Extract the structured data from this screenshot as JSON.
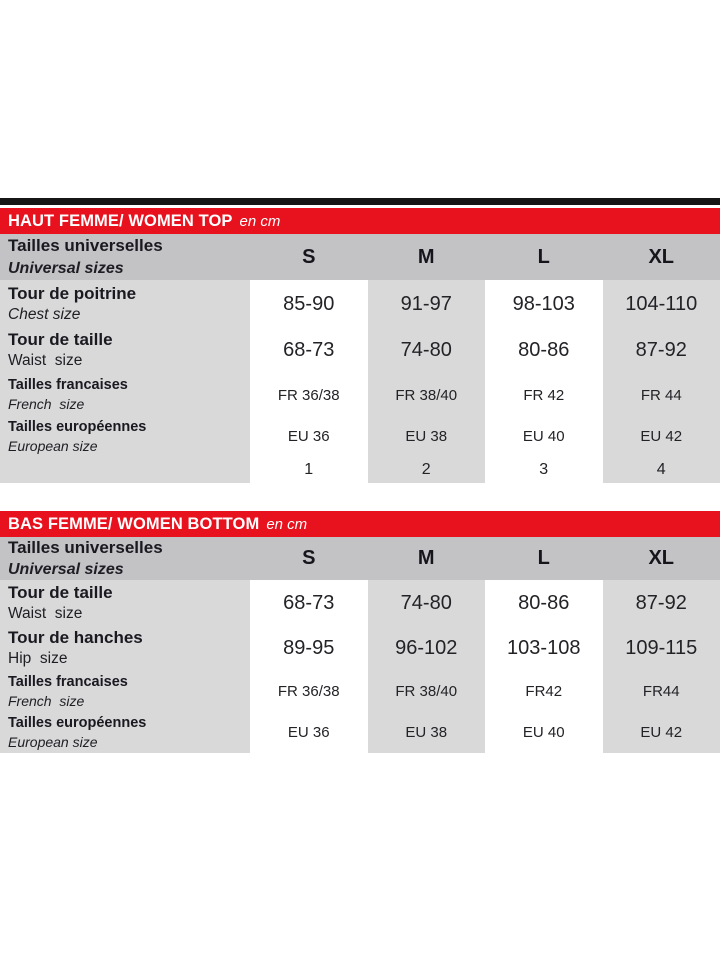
{
  "colors": {
    "header_red": "#e8111e",
    "size_header_gray": "#c3c3c5",
    "column_gray": "#d9d9da",
    "divider_black": "#161616",
    "text_dark": "#1c1c22"
  },
  "tables": [
    {
      "title": "HAUT FEMME/ WOMEN TOP",
      "unit": "en cm",
      "size_header": {
        "label_fr": "Tailles universelles",
        "label_en": "Universal sizes",
        "sizes": [
          "S",
          "M",
          "L",
          "XL"
        ]
      },
      "rows": [
        {
          "label_fr": "Tour de poitrine",
          "label_en": "Chest size",
          "values": [
            "85-90",
            "91-97",
            "98-103",
            "104-110"
          ]
        },
        {
          "label_fr": "Tour de taille",
          "label_en": "Waist  size",
          "values": [
            "68-73",
            "74-80",
            "80-86",
            "87-92"
          ]
        },
        {
          "label_fr": "Tailles francaises",
          "label_en": "French  size",
          "values": [
            "FR 36/38",
            "FR 38/40",
            "FR 42",
            "FR 44"
          ]
        },
        {
          "label_fr": "Tailles européennes",
          "label_en": "European size",
          "values": [
            "EU 36",
            "EU 38",
            "EU 40",
            "EU 42"
          ]
        },
        {
          "label_fr": "",
          "label_en": "",
          "values": [
            "1",
            "2",
            "3",
            "4"
          ]
        }
      ]
    },
    {
      "title": "BAS FEMME/ WOMEN BOTTOM",
      "unit": "en cm",
      "size_header": {
        "label_fr": "Tailles universelles",
        "label_en": "Universal sizes",
        "sizes": [
          "S",
          "M",
          "L",
          "XL"
        ]
      },
      "rows": [
        {
          "label_fr": "Tour de taille",
          "label_en": "Waist  size",
          "values": [
            "68-73",
            "74-80",
            "80-86",
            "87-92"
          ]
        },
        {
          "label_fr": "Tour de hanches",
          "label_en": "Hip  size",
          "values": [
            "89-95",
            "96-102",
            "103-108",
            "109-115"
          ]
        },
        {
          "label_fr": "Tailles francaises",
          "label_en": "French  size",
          "values": [
            "FR 36/38",
            "FR 38/40",
            "FR42",
            "FR44"
          ]
        },
        {
          "label_fr": "Tailles européennes",
          "label_en": "European size",
          "values": [
            "EU 36",
            "EU 38",
            "EU 40",
            "EU 42"
          ]
        }
      ]
    }
  ]
}
